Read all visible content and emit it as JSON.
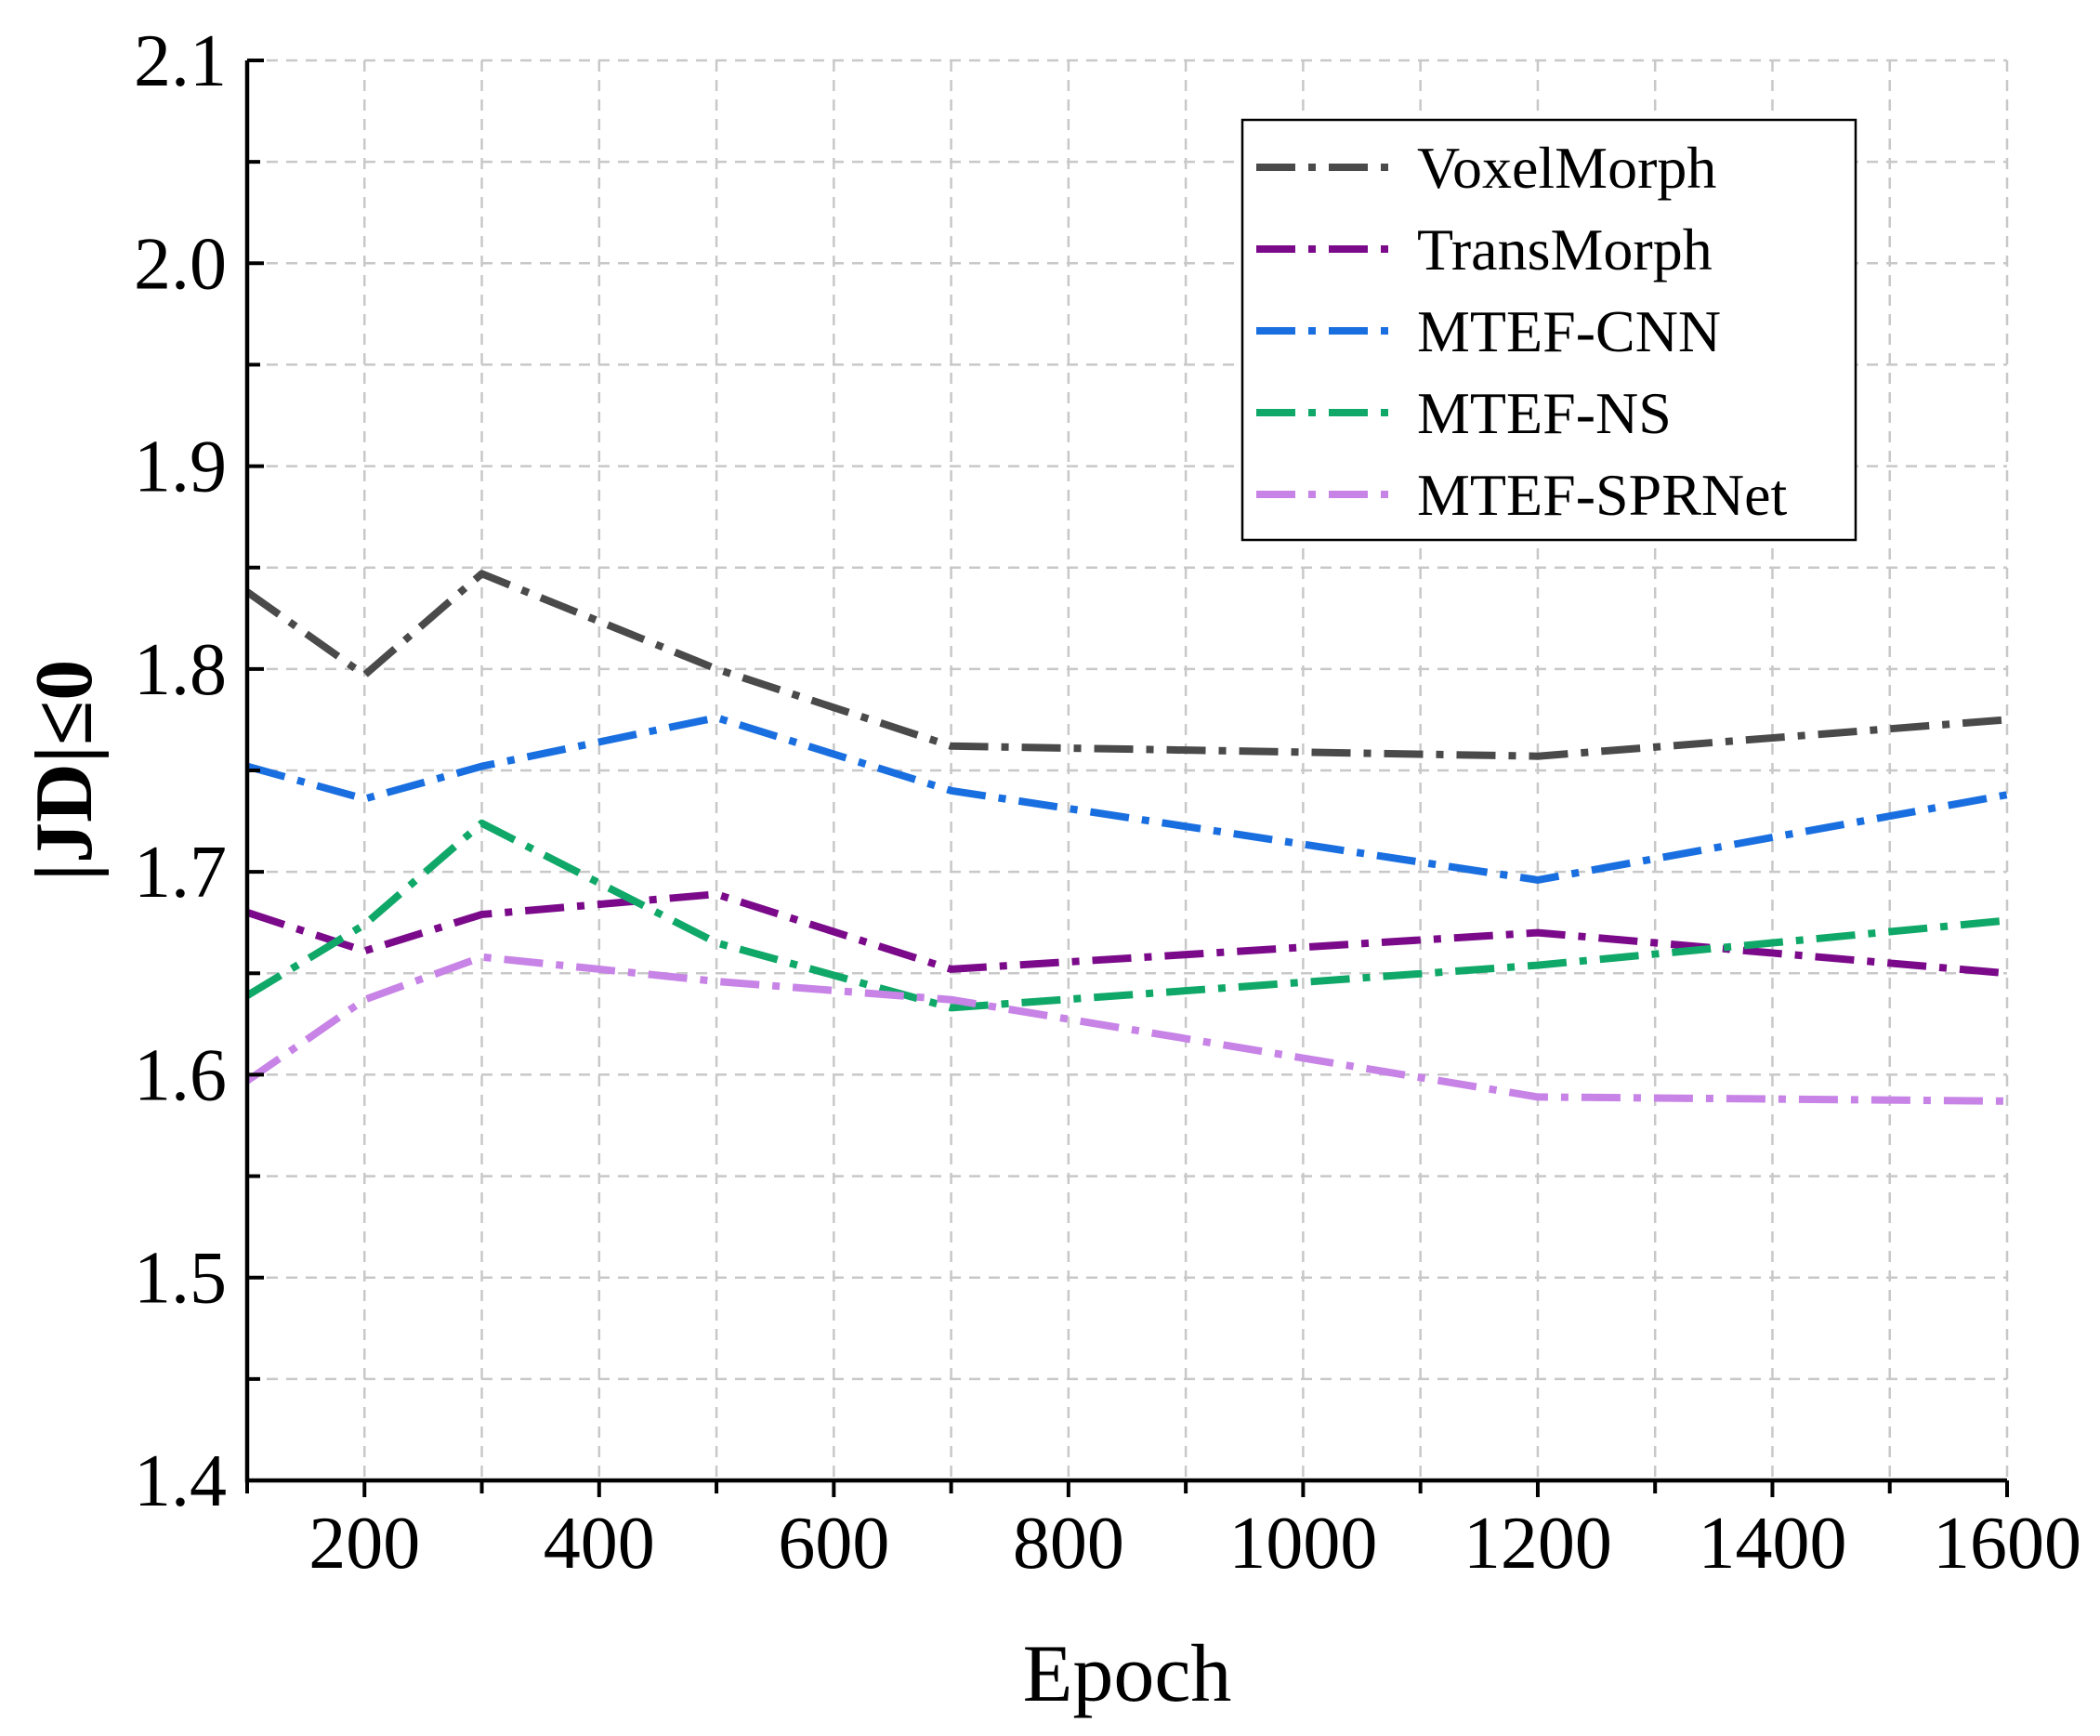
{
  "chart_data": {
    "type": "line",
    "title": "",
    "xlabel": "Epoch",
    "ylabel": "|JD|≤0",
    "xlim": [
      100,
      1600
    ],
    "ylim": [
      1.4,
      2.1
    ],
    "x_ticks": [
      200,
      400,
      600,
      800,
      1000,
      1200,
      1400,
      1600
    ],
    "x_tick_labels": [
      "200",
      "400",
      "600",
      "800",
      "1000",
      "1200",
      "1400",
      "1600"
    ],
    "y_ticks": [
      1.4,
      1.5,
      1.6,
      1.7,
      1.8,
      1.9,
      2.0,
      2.1
    ],
    "y_tick_labels": [
      "1.4",
      "1.5",
      "1.6",
      "1.7",
      "1.8",
      "1.9",
      "2.0",
      "2.1"
    ],
    "grid": true,
    "legend_position": "top-right",
    "x": [
      100,
      200,
      300,
      500,
      700,
      1200,
      1600
    ],
    "series": [
      {
        "name": "VoxelMorph",
        "color": "#4a4a4a",
        "values": [
          1.838,
          1.797,
          1.847,
          1.8,
          1.762,
          1.757,
          1.775
        ]
      },
      {
        "name": "TransMorph",
        "color": "#7b0a8a",
        "values": [
          1.68,
          1.661,
          1.679,
          1.689,
          1.652,
          1.67,
          1.65
        ]
      },
      {
        "name": "MTEF-CNN",
        "color": "#1a6fe0",
        "values": [
          1.752,
          1.736,
          1.752,
          1.776,
          1.74,
          1.696,
          1.738
        ]
      },
      {
        "name": "MTEF-NS",
        "color": "#10a868",
        "values": [
          1.639,
          1.674,
          1.724,
          1.665,
          1.633,
          1.654,
          1.676
        ]
      },
      {
        "name": "MTEF-SPRNet",
        "color": "#c783e6",
        "values": [
          1.597,
          1.637,
          1.658,
          1.646,
          1.637,
          1.589,
          1.587
        ]
      }
    ]
  }
}
